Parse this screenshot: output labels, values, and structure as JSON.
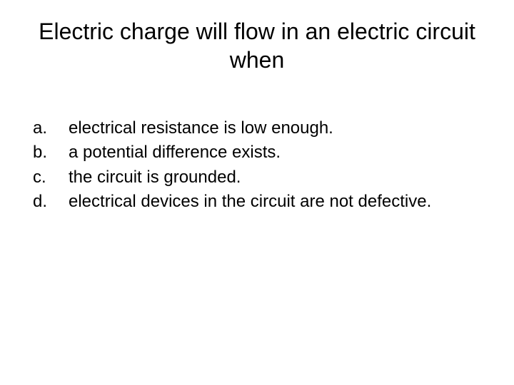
{
  "slide": {
    "title": "Electric charge will flow in an electric circuit when",
    "title_fontsize": 32,
    "option_fontsize": 24,
    "background_color": "#ffffff",
    "text_color": "#000000",
    "options": [
      {
        "letter": "a.",
        "text": "electrical resistance is low enough."
      },
      {
        "letter": "b.",
        "text": "a potential difference exists."
      },
      {
        "letter": "c.",
        "text": "the circuit is grounded."
      },
      {
        "letter": "d.",
        "text": "electrical devices in the circuit are not defective."
      }
    ]
  }
}
